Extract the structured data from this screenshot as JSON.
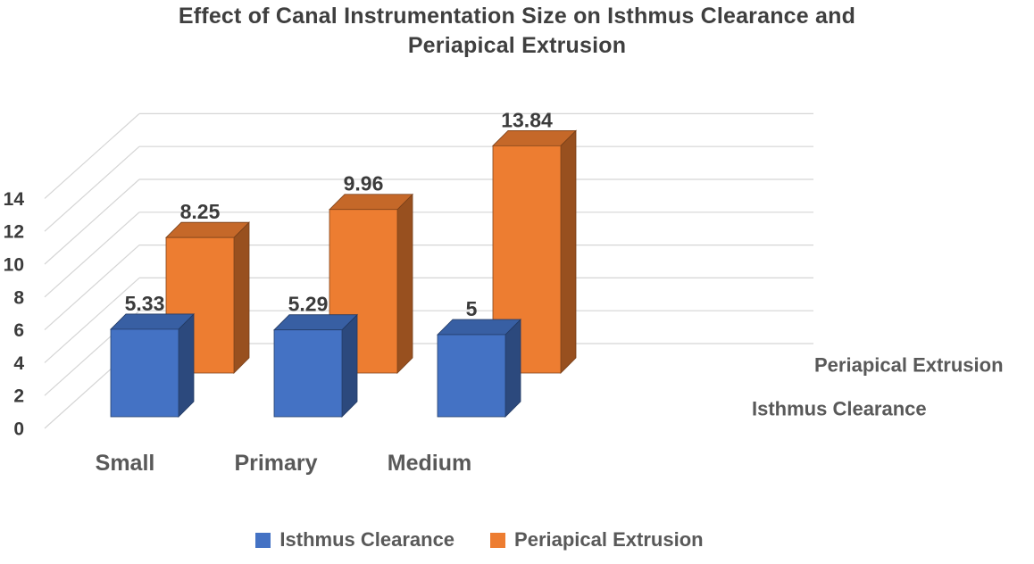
{
  "title": {
    "text": "Effect of Canal Instrumentation Size on Isthmus Clearance and Periapical Extrusion",
    "lines": [
      "Effect of Canal Instrumentation Size on Isthmus Clearance and",
      "Periapical Extrusion"
    ]
  },
  "chart_data": {
    "type": "bar",
    "projection": "3d-column",
    "title": "Effect of Canal Instrumentation Size on Isthmus Clearance and Periapical Extrusion",
    "categories": [
      "Small",
      "Primary",
      "Medium"
    ],
    "series": [
      {
        "name": "Isthmus Clearance",
        "color": "#4472C4",
        "values": [
          5.33,
          5.29,
          5
        ],
        "labels": [
          "5.33",
          "5.29",
          "5"
        ]
      },
      {
        "name": "Periapical Extrusion",
        "color": "#ED7D31",
        "values": [
          8.25,
          9.96,
          13.84
        ],
        "labels": [
          "8.25",
          "9.96",
          "13.84"
        ]
      }
    ],
    "y_axis": {
      "min": 0,
      "max": 14,
      "tick_step": 2,
      "ticks": [
        0,
        2,
        4,
        6,
        8,
        10,
        12,
        14
      ]
    },
    "depth_axis_labels": [
      "Isthmus Clearance",
      "Periapical Extrusion"
    ],
    "legend": {
      "position": "bottom",
      "entries": [
        "Isthmus Clearance",
        "Periapical Extrusion"
      ]
    },
    "gridlines": true,
    "gridline_color": "#D5D5D5",
    "text_colors": {
      "title": "#3F3F3F",
      "ticks": "#3B3B3B",
      "data_labels": "#3B3B3B",
      "categories": "#595959",
      "depth_labels": "#595959",
      "legend": "#595959"
    }
  }
}
